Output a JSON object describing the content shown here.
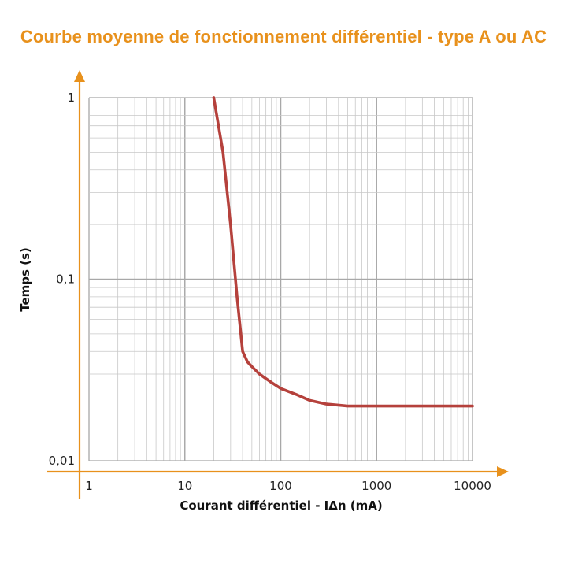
{
  "page": {
    "title": "Courbe moyenne de fonctionnement différentiel - type A ou AC",
    "title_color": "#e8911c"
  },
  "chart_data": {
    "type": "line",
    "title": "Courbe moyenne de fonctionnement différentiel - type A ou AC",
    "xlabel": "Courant différentiel - IΔn (mA)",
    "ylabel": "Temps (s)",
    "x_scale": "log",
    "y_scale": "log",
    "xlim": [
      1,
      10000
    ],
    "ylim": [
      0.01,
      1
    ],
    "x_ticks": [
      1,
      10,
      100,
      1000,
      10000
    ],
    "x_tick_labels": [
      "1",
      "10",
      "100",
      "1000",
      "10000"
    ],
    "y_ticks": [
      1,
      0.1,
      0.01
    ],
    "y_tick_labels": [
      "1",
      "0,1",
      "0,01"
    ],
    "grid": true,
    "axis_color": "#e8911c",
    "grid_color": "#c8c8c8",
    "series": [
      {
        "color": "#b5413c",
        "x": [
          20,
          25,
          30,
          35,
          40,
          45,
          50,
          60,
          80,
          100,
          150,
          200,
          300,
          500,
          1000,
          2000,
          5000,
          10000
        ],
        "y": [
          1,
          0.5,
          0.2,
          0.08,
          0.04,
          0.035,
          0.033,
          0.03,
          0.027,
          0.025,
          0.023,
          0.0215,
          0.0205,
          0.02,
          0.02,
          0.02,
          0.02,
          0.02
        ]
      }
    ]
  }
}
